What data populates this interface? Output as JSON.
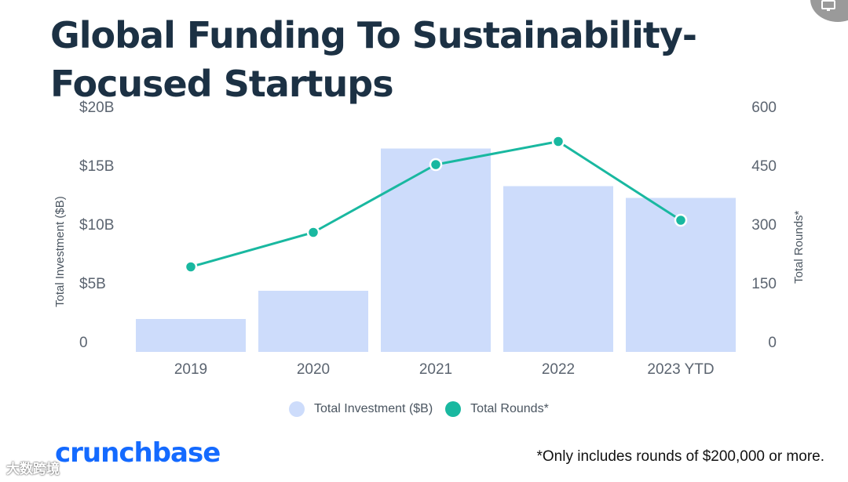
{
  "header": {
    "title": "Global Funding To Sustainability-Focused Startups"
  },
  "chart_data": {
    "type": "bar",
    "categories": [
      "2019",
      "2020",
      "2021",
      "2022",
      "2023 YTD"
    ],
    "series": [
      {
        "name": "Total Investment ($B)",
        "type": "bar",
        "axis": "left",
        "values": [
          2.8,
          5.2,
          17.3,
          14.1,
          13.1
        ],
        "color": "#cddcfb"
      },
      {
        "name": "Total Rounds*",
        "type": "line",
        "axis": "right",
        "values": [
          217,
          305,
          478,
          537,
          336
        ],
        "color": "#19b8a0"
      }
    ],
    "y_left": {
      "label": "Total Investment ($B)",
      "range": [
        0,
        20
      ],
      "ticks": [
        "0",
        "$5B",
        "$10B",
        "$15B",
        "$20B"
      ]
    },
    "y_right": {
      "label": "Total Rounds*",
      "range": [
        0,
        600
      ],
      "ticks": [
        "0",
        "150",
        "300",
        "450",
        "600"
      ]
    },
    "grid": false,
    "legend": "bottom-center"
  },
  "legend": {
    "investment_label": "Total Investment ($B)",
    "rounds_label": "Total Rounds*"
  },
  "footer": {
    "logo": "crunchbase",
    "footnote": "*Only includes rounds of $200,000 or more.",
    "watermark": "大数跨境"
  },
  "colors": {
    "title": "#1c3144",
    "bar": "#cddcfb",
    "line": "#19b8a0",
    "logo": "#146aff"
  },
  "icons": {
    "corner": "monitor-icon"
  }
}
